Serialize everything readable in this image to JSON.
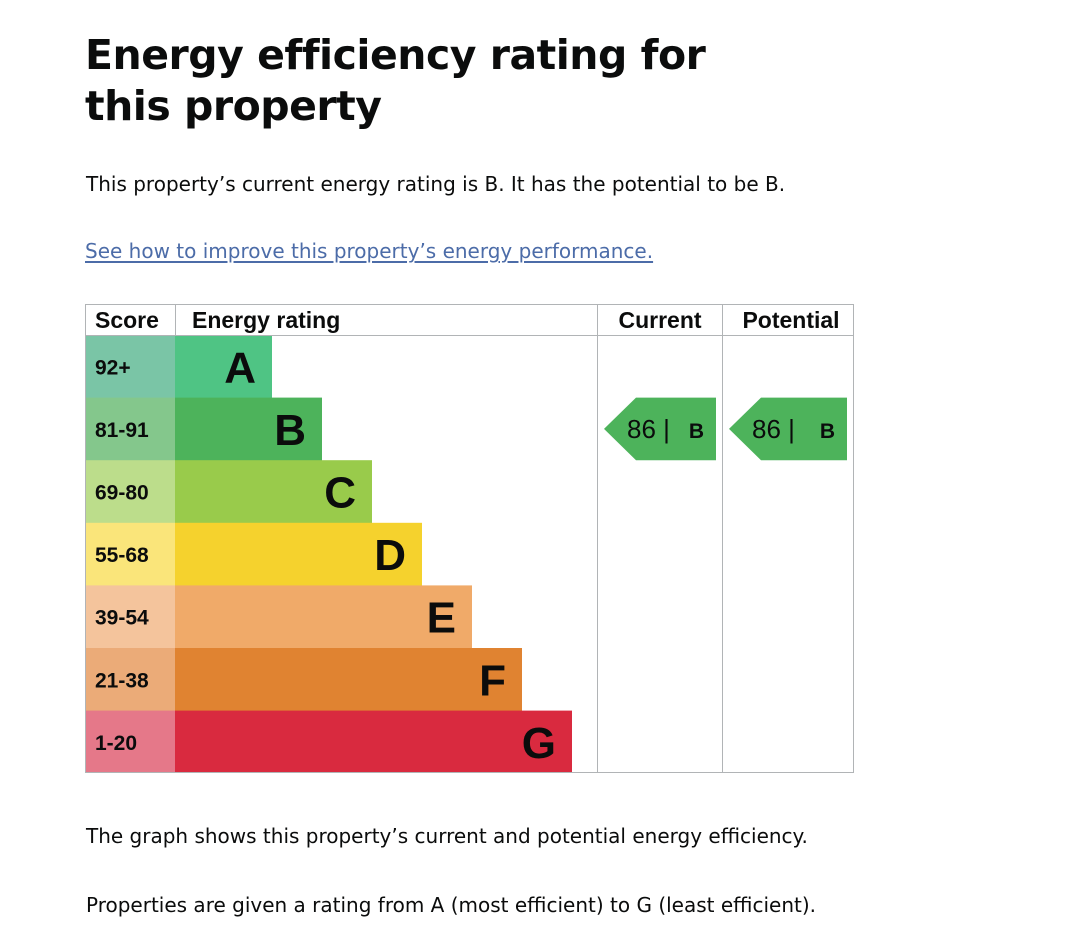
{
  "page": {
    "title": "Energy efficiency rating for this property",
    "summary": "This property’s current energy rating is B. It has the potential to be B.",
    "improve_link": "See how to improve this property’s energy performance.",
    "graph_note": "The graph shows this property’s current and potential energy efficiency.",
    "rating_note": "Properties are given a rating from A (most efficient) to G (least efficient)."
  },
  "chart_data": {
    "type": "bar",
    "headers": {
      "score": "Score",
      "rating": "Energy rating",
      "current": "Current",
      "potential": "Potential"
    },
    "bands": [
      {
        "letter": "A",
        "score_range": "92+",
        "color": "#4fc484",
        "score_color": "#7ac5a6"
      },
      {
        "letter": "B",
        "score_range": "81-91",
        "color": "#4db35b",
        "score_color": "#84c78c"
      },
      {
        "letter": "C",
        "score_range": "69-80",
        "color": "#99cb4b",
        "score_color": "#bcdd8b"
      },
      {
        "letter": "D",
        "score_range": "55-68",
        "color": "#f5d22d",
        "score_color": "#fae57a"
      },
      {
        "letter": "E",
        "score_range": "39-54",
        "color": "#f0aa69",
        "score_color": "#f4c49c"
      },
      {
        "letter": "F",
        "score_range": "21-38",
        "color": "#e08331",
        "score_color": "#ebab78"
      },
      {
        "letter": "G",
        "score_range": "1-20",
        "color": "#d92a3f",
        "score_color": "#e57889"
      }
    ],
    "current": {
      "score": 86,
      "band": "B",
      "label": "86 |",
      "color": "#4db35b"
    },
    "potential": {
      "score": 86,
      "band": "B",
      "label": "86 |",
      "color": "#4db35b"
    }
  }
}
